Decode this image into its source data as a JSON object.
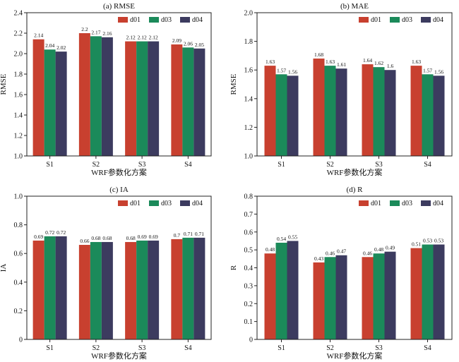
{
  "colors": {
    "d01": "#c8402f",
    "d03": "#1b8a5a",
    "d04": "#3c3b5f"
  },
  "chart_data": [
    {
      "type": "bar",
      "title": "(a) RMSE",
      "xlabel": "WRF参数化方案",
      "ylabel": "RMSE",
      "categories": [
        "S1",
        "S2",
        "S3",
        "S4"
      ],
      "ylim": [
        1.0,
        2.4
      ],
      "yticks": [
        "1.0",
        "1.2",
        "1.4",
        "1.6",
        "1.8",
        "2.0",
        "2.2",
        "2.4"
      ],
      "legend_position": "top-right",
      "series": [
        {
          "name": "d01",
          "values": [
            2.14,
            2.2,
            2.12,
            2.09
          ],
          "labels": [
            "2.14",
            "2.2",
            "2.12",
            "2.09"
          ]
        },
        {
          "name": "d03",
          "values": [
            2.04,
            2.17,
            2.12,
            2.06
          ],
          "labels": [
            "2.04",
            "2.17",
            "2.12",
            "2.06"
          ]
        },
        {
          "name": "d04",
          "values": [
            2.02,
            2.16,
            2.12,
            2.05
          ],
          "labels": [
            "2.02",
            "2.16",
            "2.12",
            "2.05"
          ]
        }
      ]
    },
    {
      "type": "bar",
      "title": "(b) MAE",
      "xlabel": "WRF参数化方案",
      "ylabel": "RMSE",
      "categories": [
        "S1",
        "S2",
        "S3",
        "S4"
      ],
      "ylim": [
        1.0,
        2.0
      ],
      "yticks": [
        "1.0",
        "1.2",
        "1.4",
        "1.6",
        "1.8",
        "2.0"
      ],
      "legend_position": "top-right",
      "series": [
        {
          "name": "d01",
          "values": [
            1.63,
            1.68,
            1.64,
            1.63
          ],
          "labels": [
            "1.63",
            "1.68",
            "1.64",
            "1.63"
          ]
        },
        {
          "name": "d03",
          "values": [
            1.57,
            1.63,
            1.62,
            1.57
          ],
          "labels": [
            "1.57",
            "1.63",
            "1.62",
            "1.57"
          ]
        },
        {
          "name": "d04",
          "values": [
            1.56,
            1.61,
            1.6,
            1.56
          ],
          "labels": [
            "1.56",
            "1.61",
            "1.6",
            "1.56"
          ]
        }
      ]
    },
    {
      "type": "bar",
      "title": "(c) IA",
      "xlabel": "WRF参数化方案",
      "ylabel": "IA",
      "categories": [
        "S1",
        "S2",
        "S3",
        "S4"
      ],
      "ylim": [
        0,
        1.0
      ],
      "yticks": [
        "0",
        "0.2",
        "0.4",
        "0.6",
        "0.8",
        "1.0"
      ],
      "legend_position": "top-right",
      "series": [
        {
          "name": "d01",
          "values": [
            0.69,
            0.66,
            0.68,
            0.7
          ],
          "labels": [
            "0.69",
            "0.66",
            "0.68",
            "0.7"
          ]
        },
        {
          "name": "d03",
          "values": [
            0.72,
            0.68,
            0.69,
            0.71
          ],
          "labels": [
            "0.72",
            "0.68",
            "0.69",
            "0.71"
          ]
        },
        {
          "name": "d04",
          "values": [
            0.72,
            0.68,
            0.69,
            0.71
          ],
          "labels": [
            "0.72",
            "0.68",
            "0.69",
            "0.71"
          ]
        }
      ]
    },
    {
      "type": "bar",
      "title": "(d) R",
      "xlabel": "WRF参数化方案",
      "ylabel": "R",
      "categories": [
        "S1",
        "S2",
        "S3",
        "S4"
      ],
      "ylim": [
        0,
        0.8
      ],
      "yticks": [
        "0",
        "0.1",
        "0.2",
        "0.3",
        "0.4",
        "0.5",
        "0.6",
        "0.7",
        "0.8"
      ],
      "legend_position": "top-right",
      "series": [
        {
          "name": "d01",
          "values": [
            0.48,
            0.43,
            0.46,
            0.51
          ],
          "labels": [
            "0.48",
            "0.43",
            "0.46",
            "0.51"
          ]
        },
        {
          "name": "d03",
          "values": [
            0.54,
            0.46,
            0.48,
            0.53
          ],
          "labels": [
            "0.54",
            "0.46",
            "0.48",
            "0.53"
          ]
        },
        {
          "name": "d04",
          "values": [
            0.55,
            0.47,
            0.49,
            0.53
          ],
          "labels": [
            "0.55",
            "0.47",
            "0.49",
            "0.53"
          ]
        }
      ]
    }
  ]
}
